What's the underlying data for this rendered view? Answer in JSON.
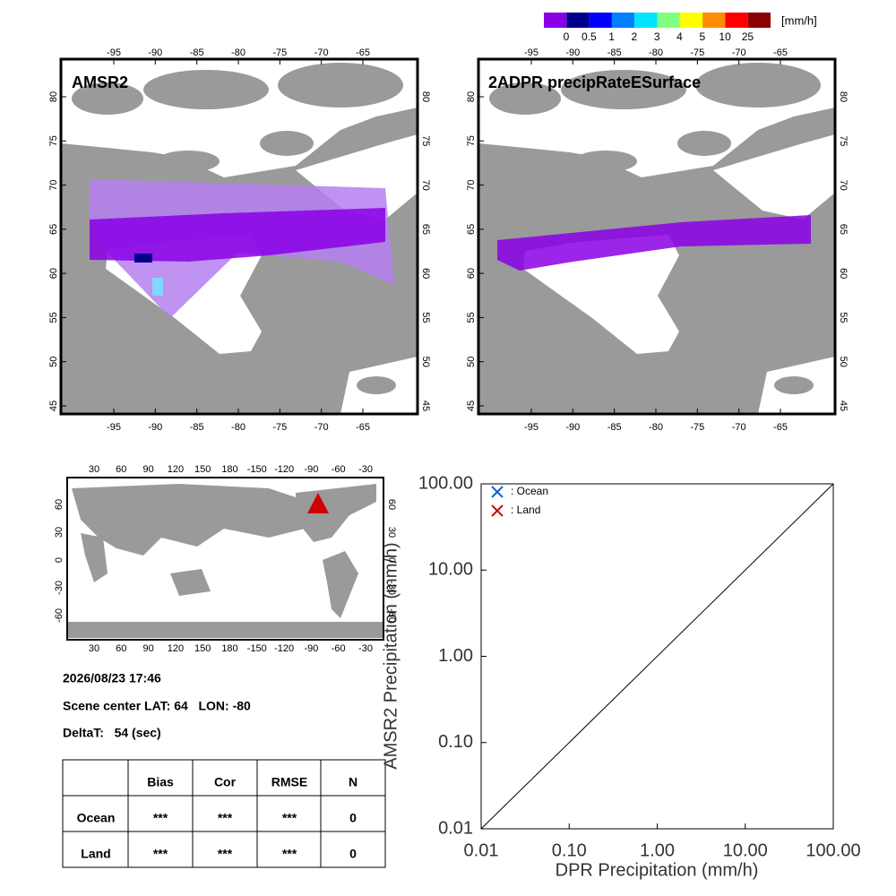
{
  "colorbar": {
    "unit": "[mm/h]",
    "bounds": [
      0,
      0.5,
      1,
      2,
      3,
      4,
      5,
      10,
      25
    ],
    "colors": [
      "#8a00e6",
      "#00008b",
      "#0000ff",
      "#0080ff",
      "#00e5ff",
      "#80ff80",
      "#ffff00",
      "#ff8c00",
      "#ff0000",
      "#8b0000"
    ]
  },
  "maps": [
    {
      "title": "AMSR2",
      "lon_ticks": [
        -95,
        -90,
        -85,
        -80,
        -75,
        -70,
        -65
      ],
      "lat_ticks": [
        45,
        50,
        55,
        60,
        65,
        70,
        75,
        80
      ]
    },
    {
      "title": "2ADPR precipRateESurface",
      "lon_ticks": [
        -95,
        -90,
        -85,
        -80,
        -75,
        -70,
        -65
      ],
      "lat_ticks": [
        45,
        50,
        55,
        60,
        65,
        70,
        75,
        80
      ]
    }
  ],
  "world_map": {
    "lon_ticks": [
      30,
      60,
      90,
      120,
      150,
      180,
      -150,
      -120,
      -90,
      -60,
      -30
    ],
    "lat_ticks": [
      60,
      30,
      0,
      -30,
      -60
    ]
  },
  "info": {
    "datetime": "2026/08/23 17:46",
    "scene": "Scene center LAT: 64   LON: -80",
    "deltat": "DeltaT:   54 (sec)"
  },
  "table": {
    "columns": [
      "Bias",
      "Cor",
      "RMSE",
      "N"
    ],
    "rows": [
      [
        "Ocean",
        "***",
        "***",
        "***",
        "0"
      ],
      [
        "Land",
        "***",
        "***",
        "***",
        "0"
      ]
    ]
  },
  "chart_data": {
    "type": "scatter",
    "xlabel": "DPR Precipitation (mm/h)",
    "ylabel": "AMSR2 Precipitation (mm/h)",
    "log": true,
    "xlim": [
      0.01,
      100
    ],
    "ylim": [
      0.01,
      100
    ],
    "xticks": [
      {
        "value": 0.01,
        "label": "0.01"
      },
      {
        "value": 0.1,
        "label": "0.10"
      },
      {
        "value": 1,
        "label": "1.00"
      },
      {
        "value": 10,
        "label": "10.00"
      },
      {
        "value": 100,
        "label": "100.00"
      }
    ],
    "yticks": [
      {
        "value": 0.01,
        "label": "0.01"
      },
      {
        "value": 0.1,
        "label": "0.10"
      },
      {
        "value": 1,
        "label": "1.00"
      },
      {
        "value": 10,
        "label": "10.00"
      },
      {
        "value": 100,
        "label": "100.00"
      }
    ],
    "series": [
      {
        "name": ": Ocean",
        "color": "#1060e0",
        "x": [],
        "values": []
      },
      {
        "name": ": Land",
        "color": "#c01010",
        "x": [],
        "values": []
      }
    ]
  }
}
